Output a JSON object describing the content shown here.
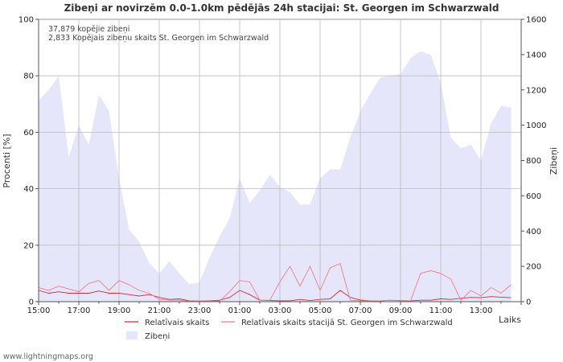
{
  "chart_data": {
    "type": "area",
    "title": "Zibeņi ar novirzēm 0.0-1.0km pēdējās 24h stacijai: St. Georgen im Schwarzwald",
    "xlabel": "Laiks",
    "ylabel_left": "Procenti   [%]",
    "ylabel_right": "Zibeņi",
    "ylim_left": [
      0,
      100
    ],
    "ylim_right": [
      0,
      1600
    ],
    "left_ticks": [
      "0",
      "20",
      "40",
      "60",
      "80",
      "100"
    ],
    "right_ticks": [
      "0",
      "200",
      "400",
      "600",
      "800",
      "1000",
      "1200",
      "1400",
      "1600"
    ],
    "x_tick_labels": [
      "15:00",
      "17:00",
      "19:00",
      "21:00",
      "23:00",
      "01:00",
      "03:00",
      "05:00",
      "07:00",
      "09:00",
      "11:00",
      "13:00"
    ],
    "annotations": [
      "37,879 kopējie zibeņi",
      "2,833 Kopējais zibeņu skaits St. Georgen im Schwarzwald"
    ],
    "hours": [
      0,
      0.5,
      1,
      1.5,
      2,
      2.5,
      3,
      3.5,
      4,
      4.5,
      5,
      5.5,
      6,
      6.5,
      7,
      7.5,
      8,
      8.5,
      9,
      9.5,
      10,
      10.5,
      11,
      11.5,
      12,
      12.5,
      13,
      13.5,
      14,
      14.5,
      15,
      15.5,
      16,
      16.5,
      17,
      17.5,
      18,
      18.5,
      19,
      19.5,
      20,
      20.5,
      21,
      21.5,
      22,
      22.5,
      23,
      23.5
    ],
    "series": [
      {
        "name": "Zibeņi",
        "axis": "right",
        "color": "#e6e6fa",
        "values": [
          1140,
          1200,
          1280,
          820,
          1000,
          890,
          1170,
          1080,
          700,
          410,
          340,
          220,
          160,
          230,
          160,
          100,
          110,
          250,
          370,
          470,
          700,
          560,
          630,
          720,
          650,
          620,
          550,
          550,
          700,
          750,
          750,
          930,
          1080,
          1180,
          1270,
          1280,
          1290,
          1380,
          1420,
          1400,
          1240,
          930,
          870,
          890,
          800,
          1010,
          1110,
          1100
        ]
      },
      {
        "name": "Relatīvais skaits",
        "axis": "left",
        "color": "#d42a3a",
        "values": [
          4,
          3,
          3.5,
          3,
          3,
          3,
          3.8,
          3,
          3,
          2.5,
          2,
          2.5,
          1.5,
          0.8,
          1,
          0.3,
          0.2,
          0.3,
          0.5,
          1.5,
          4,
          2.5,
          0.5,
          0.4,
          0.3,
          0.3,
          0.8,
          0.4,
          0.8,
          1,
          4,
          1.5,
          0.6,
          0.3,
          0.3,
          0.5,
          0.4,
          0.3,
          0.5,
          0.5,
          1,
          0.8,
          1.2,
          1.5,
          1.4,
          1.8,
          1.6,
          1.4
        ]
      },
      {
        "name": "Relatīvais skaits stacijā St. Georgen im Schwarzwald",
        "axis": "left",
        "color": "#f07c86",
        "values": [
          5,
          4,
          5.5,
          4.5,
          3.5,
          6.5,
          7.5,
          4,
          7.5,
          6,
          4,
          3,
          0.8,
          0.5,
          0.5,
          0.2,
          0.2,
          0.2,
          0.2,
          3.5,
          7.5,
          7,
          0.5,
          0.5,
          7,
          12.5,
          5.5,
          12.5,
          4,
          12,
          13.5,
          0.5,
          0.3,
          0.3,
          0.3,
          0.5,
          0.3,
          0.3,
          10,
          11,
          10,
          8,
          0.5,
          4,
          2,
          5,
          3,
          6
        ]
      }
    ],
    "legend": [
      {
        "label": "Relatīvais skaits",
        "type": "line",
        "color": "#d42a3a"
      },
      {
        "label": "Relatīvais skaits stacijā St. Georgen im Schwarzwald",
        "type": "line",
        "color": "#f07c86"
      },
      {
        "label": "Zibeņi",
        "type": "area",
        "color": "#e6e6fa"
      }
    ]
  },
  "footer": "www.lightningmaps.org"
}
